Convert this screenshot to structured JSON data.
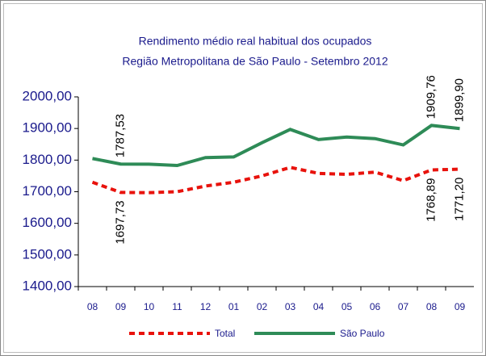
{
  "chart_data": {
    "type": "line",
    "title": "Rendimento médio real habitual dos ocupados",
    "subtitle": "Região Metropolitana de São Paulo - Setembro 2012",
    "categories": [
      "08",
      "09",
      "10",
      "11",
      "12",
      "01",
      "02",
      "03",
      "04",
      "05",
      "06",
      "07",
      "08",
      "09"
    ],
    "series": [
      {
        "name": "Total",
        "color": "#e8120c",
        "dashed": true,
        "values": [
          1730,
          1697.73,
          1697,
          1700,
          1718,
          1730,
          1750,
          1777,
          1758,
          1755,
          1762,
          1735,
          1768.89,
          1771.2
        ],
        "value_labels": [
          null,
          "1697,73",
          null,
          null,
          null,
          null,
          null,
          null,
          null,
          null,
          null,
          null,
          "1768,89",
          "1771,20"
        ]
      },
      {
        "name": "São Paulo",
        "color": "#2e8b57",
        "dashed": false,
        "values": [
          1805,
          1787.53,
          1787,
          1783,
          1808,
          1810,
          1855,
          1897,
          1865,
          1873,
          1868,
          1848,
          1909.76,
          1899.9
        ],
        "value_labels": [
          null,
          "1787,53",
          null,
          null,
          null,
          null,
          null,
          null,
          null,
          null,
          null,
          null,
          "1909,76",
          "1899,90"
        ]
      }
    ],
    "ylim": [
      1400,
      2000
    ],
    "yticks": [
      {
        "value": 1400,
        "label": "1400,00"
      },
      {
        "value": 1500,
        "label": "1500,00"
      },
      {
        "value": 1600,
        "label": "1600,00"
      },
      {
        "value": 1700,
        "label": "1700,00"
      },
      {
        "value": 1800,
        "label": "1800,00"
      },
      {
        "value": 1900,
        "label": "1900,00"
      },
      {
        "value": 2000,
        "label": "2000,00"
      }
    ]
  }
}
